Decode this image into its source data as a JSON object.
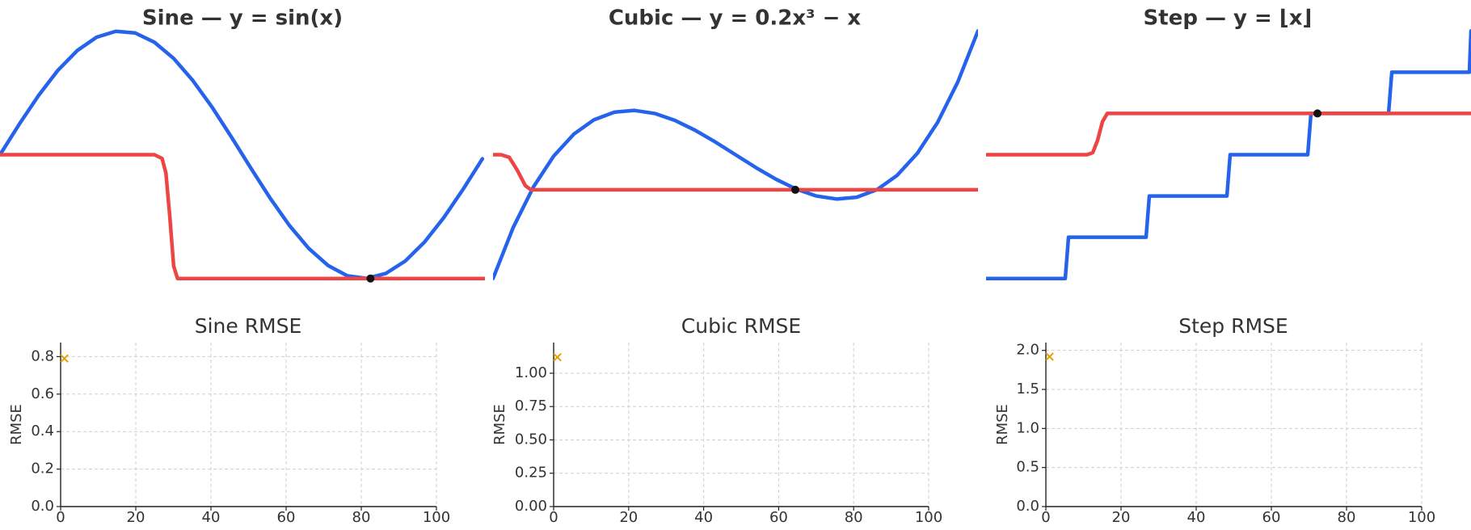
{
  "chart_data": [
    {
      "type": "line",
      "title": "Sine — y = sin(x)",
      "xlim": [
        0,
        6.283
      ],
      "ylim": [
        -1.25,
        1.25
      ],
      "series": [
        {
          "color": "#2563eb",
          "x": [
            0,
            0.25,
            0.5,
            0.75,
            1,
            1.25,
            1.5,
            1.75,
            2,
            2.25,
            2.5,
            2.75,
            3,
            3.25,
            3.5,
            3.75,
            4,
            4.25,
            4.5,
            4.75,
            5,
            5.25,
            5.5,
            5.75,
            6,
            6.25
          ],
          "values": [
            0,
            0.247,
            0.479,
            0.682,
            0.841,
            0.949,
            0.997,
            0.984,
            0.909,
            0.778,
            0.598,
            0.382,
            0.141,
            -0.108,
            -0.351,
            -0.572,
            -0.757,
            -0.895,
            -0.978,
            -0.999,
            -0.959,
            -0.859,
            -0.706,
            -0.508,
            -0.279,
            -0.033
          ]
        },
        {
          "color": "#ef4444",
          "x": [
            0,
            2.0,
            2.1,
            2.15,
            2.2,
            2.25,
            2.3,
            6.283
          ],
          "values": [
            0,
            0,
            -0.03,
            -0.15,
            -0.5,
            -0.9,
            -1,
            -1
          ]
        },
        {
          "color": "#111111",
          "marker": "o",
          "x": [
            4.8
          ],
          "values": [
            -1
          ]
        }
      ]
    },
    {
      "type": "line",
      "title": "Cubic — y = 0.2x³ − x",
      "xlim": [
        -3,
        3
      ],
      "ylim": [
        -3,
        3
      ],
      "series": [
        {
          "color": "#2563eb",
          "x": [
            -3,
            -2.75,
            -2.5,
            -2.25,
            -2,
            -1.75,
            -1.5,
            -1.25,
            -1,
            -0.75,
            -0.5,
            -0.25,
            0,
            0.25,
            0.5,
            0.75,
            1,
            1.25,
            1.5,
            1.75,
            2,
            2.25,
            2.5,
            2.75,
            3
          ],
          "values": [
            -2.4,
            -1.409,
            -0.625,
            -0.028,
            0.4,
            0.678,
            0.825,
            0.859,
            0.8,
            0.666,
            0.475,
            0.247,
            0,
            -0.247,
            -0.475,
            -0.666,
            -0.8,
            -0.859,
            -0.825,
            -0.678,
            -0.4,
            0.028,
            0.625,
            1.409,
            2.4
          ]
        },
        {
          "color": "#ef4444",
          "x": [
            -3,
            -2.9,
            -2.8,
            -2.7,
            -2.6,
            -2.53,
            3
          ],
          "values": [
            0,
            0,
            -0.05,
            -0.3,
            -0.6,
            -0.68,
            -0.68
          ]
        },
        {
          "color": "#111111",
          "marker": "o",
          "x": [
            0.74
          ],
          "values": [
            -0.68
          ]
        }
      ]
    },
    {
      "type": "line",
      "title": "Step — y = ⌊x⌋",
      "xlim": [
        -3,
        3
      ],
      "ylim": [
        -3.75,
        3.75
      ],
      "series": [
        {
          "color": "#2563eb",
          "x": [
            -3,
            -2.02,
            -1.98,
            -1.02,
            -0.98,
            -0.02,
            0.02,
            0.98,
            1.02,
            1.98,
            2.02,
            2.98,
            3
          ],
          "values": [
            -3,
            -3,
            -2,
            -2,
            -1,
            -1,
            0,
            0,
            1,
            1,
            2,
            2,
            3
          ]
        },
        {
          "color": "#ef4444",
          "x": [
            -3,
            -1.75,
            -1.68,
            -1.62,
            -1.56,
            -1.5,
            3
          ],
          "values": [
            0,
            0,
            0.05,
            0.35,
            0.8,
            1,
            1
          ]
        },
        {
          "color": "#111111",
          "marker": "o",
          "x": [
            1.1
          ],
          "values": [
            1
          ]
        }
      ]
    },
    {
      "type": "scatter",
      "title": "Sine RMSE",
      "y_label": "RMSE",
      "grid": true,
      "xlim": [
        0,
        100
      ],
      "xticks": [
        0,
        20,
        40,
        60,
        80,
        100
      ],
      "ylim": [
        0,
        0.875
      ],
      "yticks": [
        {
          "value": 0,
          "label": "0.0"
        },
        0.2,
        0.4,
        0.6,
        0.8
      ],
      "series": [
        {
          "color": "#e69f00",
          "marker": "x",
          "x": [
            1
          ],
          "values": [
            0.79
          ]
        }
      ]
    },
    {
      "type": "scatter",
      "title": "Cubic RMSE",
      "y_label": "RMSE",
      "grid": true,
      "xlim": [
        0,
        100
      ],
      "xticks": [
        0,
        20,
        40,
        60,
        80,
        100
      ],
      "ylim": [
        0,
        1.23
      ],
      "yticks": [
        {
          "value": 0,
          "label": "0.00"
        },
        {
          "value": 0.25,
          "label": "0.25"
        },
        {
          "value": 0.5,
          "label": "0.50"
        },
        {
          "value": 0.75,
          "label": "0.75"
        },
        {
          "value": 1,
          "label": "1.00"
        }
      ],
      "series": [
        {
          "color": "#e69f00",
          "marker": "x",
          "x": [
            1
          ],
          "values": [
            1.12
          ]
        }
      ]
    },
    {
      "type": "scatter",
      "title": "Step RMSE",
      "y_label": "RMSE",
      "grid": true,
      "xlim": [
        0,
        100
      ],
      "xticks": [
        0,
        20,
        40,
        60,
        80,
        100
      ],
      "ylim": [
        0,
        2.1
      ],
      "yticks": [
        {
          "value": 0,
          "label": "0.0"
        },
        0.5,
        {
          "value": 1,
          "label": "1.0"
        },
        1.5,
        {
          "value": 2,
          "label": "2.0"
        }
      ],
      "series": [
        {
          "color": "#e69f00",
          "marker": "x",
          "x": [
            1
          ],
          "values": [
            1.92
          ]
        }
      ]
    }
  ]
}
